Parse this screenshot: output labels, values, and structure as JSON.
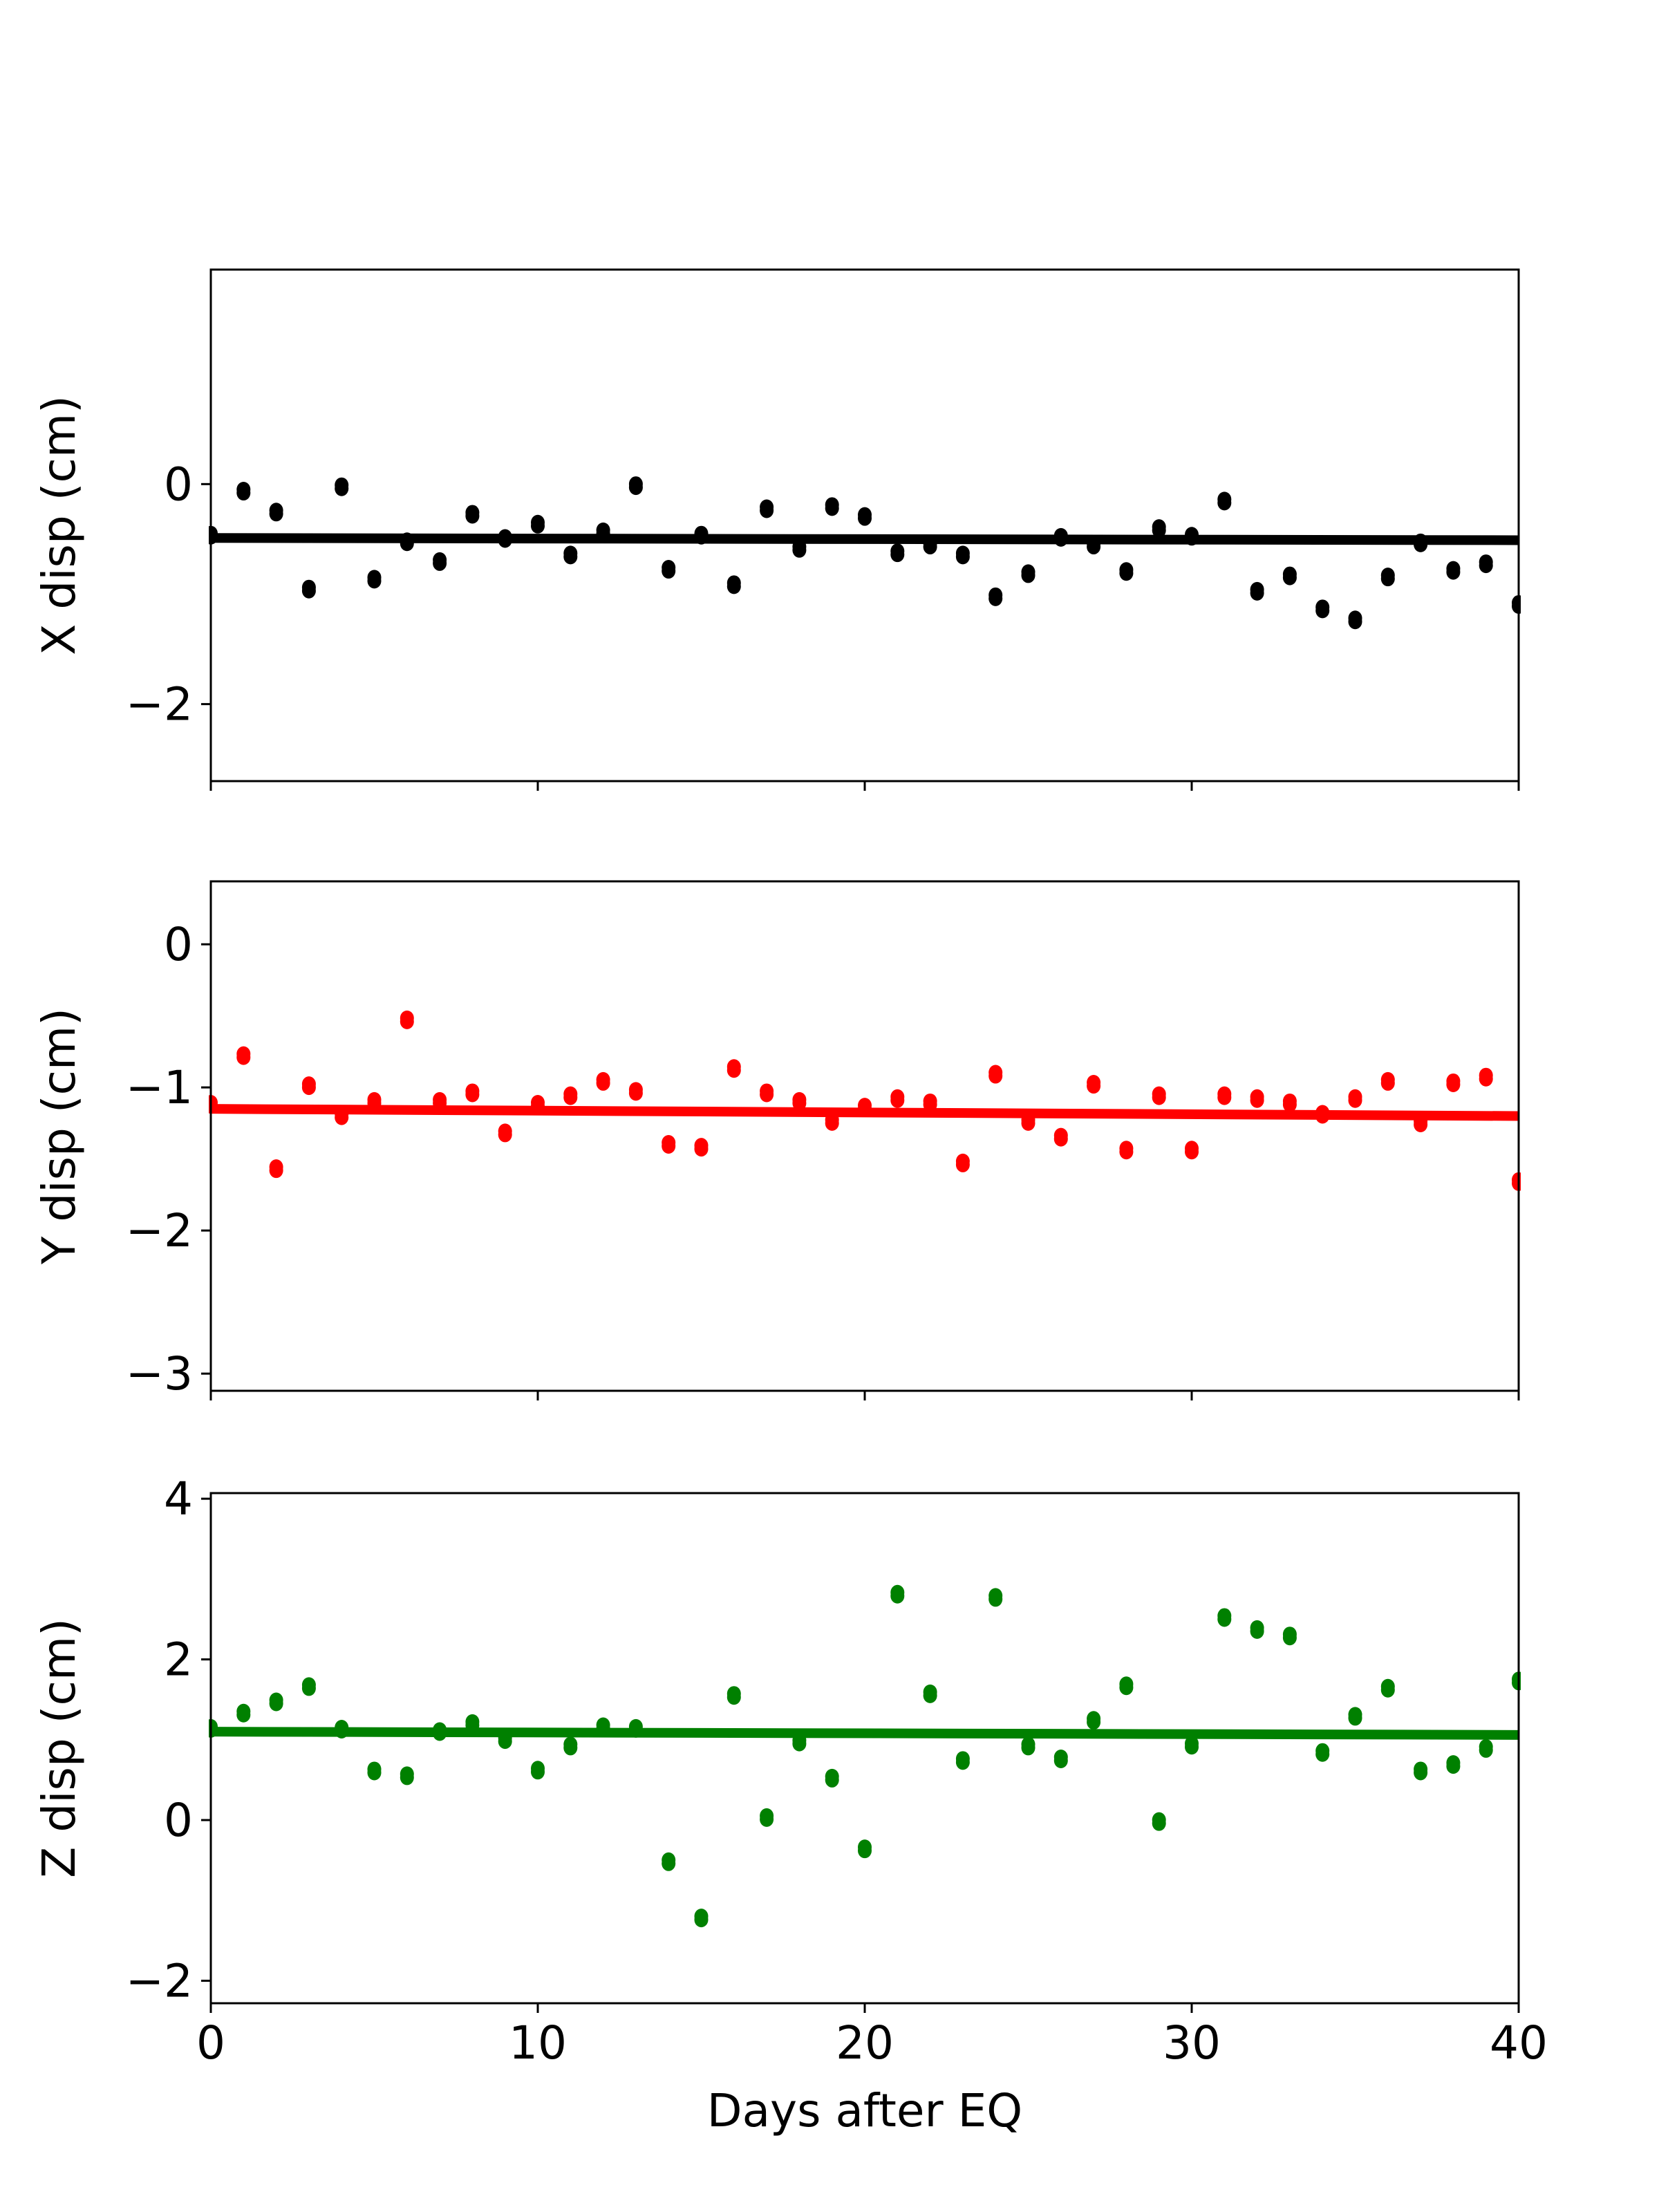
{
  "chart_data": [
    {
      "type": "scatter",
      "ylabel": "X disp (cm)",
      "xlabel": "",
      "xlim": [
        0,
        40
      ],
      "ylim": [
        -2.7,
        1.95
      ],
      "xticks": [
        0,
        10,
        20,
        30,
        40
      ],
      "yticks": [
        0,
        -2
      ],
      "show_xtick_labels": false,
      "color": "#000000",
      "points": {
        "x": [
          0,
          1,
          2,
          3,
          4,
          5,
          6,
          7,
          8,
          9,
          10,
          11,
          12,
          13,
          14,
          15,
          16,
          17,
          18,
          19,
          20,
          21,
          22,
          23,
          24,
          25,
          26,
          27,
          28,
          29,
          30,
          31,
          32,
          33,
          34,
          35,
          36,
          37,
          38,
          39,
          40
        ],
        "y": [
          -0.48,
          -0.08,
          -0.27,
          -0.97,
          -0.04,
          -0.88,
          -0.54,
          -0.72,
          -0.29,
          -0.51,
          -0.38,
          -0.66,
          -0.45,
          -0.03,
          -0.79,
          -0.48,
          -0.93,
          -0.24,
          -0.6,
          -0.22,
          -0.31,
          -0.64,
          -0.57,
          -0.66,
          -1.04,
          -0.83,
          -0.5,
          -0.57,
          -0.81,
          -0.42,
          -0.49,
          -0.17,
          -0.99,
          -0.85,
          -1.15,
          -1.25,
          -0.86,
          -0.55,
          -0.8,
          -0.74,
          -1.11
        ]
      },
      "trend": {
        "x": [
          0,
          40
        ],
        "y": [
          -0.49,
          -0.51
        ]
      }
    },
    {
      "type": "scatter",
      "ylabel": "Y disp (cm)",
      "xlabel": "",
      "xlim": [
        0,
        40
      ],
      "ylim": [
        -3.12,
        0.44
      ],
      "xticks": [
        0,
        10,
        20,
        30,
        40
      ],
      "yticks": [
        0,
        -1,
        -2,
        -3
      ],
      "show_xtick_labels": false,
      "color": "#ff0000",
      "points": {
        "x": [
          0,
          1,
          2,
          3,
          4,
          5,
          6,
          7,
          8,
          9,
          10,
          11,
          12,
          13,
          14,
          15,
          16,
          17,
          18,
          19,
          20,
          21,
          22,
          23,
          24,
          25,
          26,
          27,
          28,
          29,
          30,
          31,
          32,
          33,
          34,
          35,
          36,
          37,
          38,
          39,
          40
        ],
        "y": [
          -1.13,
          -0.79,
          -1.58,
          -1.0,
          -1.21,
          -1.11,
          -0.54,
          -1.11,
          -1.05,
          -1.33,
          -1.13,
          -1.07,
          -0.97,
          -1.04,
          -1.41,
          -1.43,
          -0.88,
          -1.05,
          -1.11,
          -1.25,
          -1.15,
          -1.09,
          -1.12,
          -1.54,
          -0.92,
          -1.25,
          -1.36,
          -0.99,
          -1.45,
          -1.07,
          -1.45,
          -1.07,
          -1.09,
          -1.12,
          -1.2,
          -1.09,
          -0.97,
          -1.26,
          -0.98,
          -0.94,
          -1.67
        ]
      },
      "trend": {
        "x": [
          0,
          40
        ],
        "y": [
          -1.15,
          -1.2
        ]
      }
    },
    {
      "type": "scatter",
      "ylabel": "Z disp (cm)",
      "xlabel": "Days after EQ",
      "xlim": [
        0,
        40
      ],
      "ylim": [
        -2.28,
        4.07
      ],
      "xticks": [
        0,
        10,
        20,
        30,
        40
      ],
      "yticks": [
        4,
        2,
        0,
        -2
      ],
      "show_xtick_labels": true,
      "color": "#008000",
      "points": {
        "x": [
          0,
          1,
          2,
          3,
          4,
          5,
          6,
          7,
          8,
          9,
          10,
          11,
          12,
          13,
          14,
          15,
          16,
          17,
          18,
          19,
          20,
          21,
          22,
          23,
          24,
          25,
          26,
          27,
          28,
          29,
          30,
          31,
          32,
          33,
          34,
          35,
          36,
          37,
          38,
          39,
          40
        ],
        "y": [
          1.12,
          1.31,
          1.45,
          1.64,
          1.11,
          0.59,
          0.53,
          1.08,
          1.18,
          0.98,
          0.6,
          0.9,
          1.14,
          1.12,
          -0.54,
          -1.24,
          1.53,
          0.01,
          0.95,
          0.5,
          -0.38,
          2.79,
          1.55,
          0.72,
          2.75,
          0.9,
          0.74,
          1.22,
          1.65,
          -0.04,
          0.91,
          2.5,
          2.35,
          2.27,
          0.82,
          1.27,
          1.62,
          0.59,
          0.67,
          0.87,
          1.71
        ]
      },
      "trend": {
        "x": [
          0,
          40
        ],
        "y": [
          1.1,
          1.06
        ]
      }
    }
  ]
}
